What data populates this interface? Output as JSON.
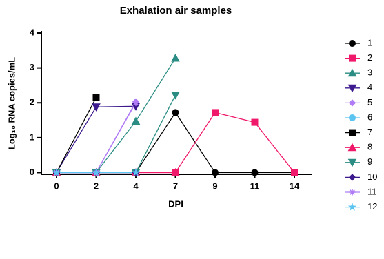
{
  "chart_data": {
    "type": "line",
    "title": "Exhalation air samples",
    "x_label": "DPI",
    "y_label": "Log₁₀ RNA copies/mL",
    "categories": [
      "0",
      "2",
      "4",
      "7",
      "9",
      "11",
      "14"
    ],
    "ylim": [
      -0.05,
      4
    ],
    "yticks": [
      0,
      1,
      2,
      3,
      4
    ],
    "legend": "right",
    "series": [
      {
        "name": "1",
        "color": "#000000",
        "marker": "circle",
        "values": [
          0,
          0,
          0,
          1.72,
          0,
          0,
          0
        ]
      },
      {
        "name": "2",
        "color": "#f0186a",
        "marker": "square",
        "values": [
          0,
          0,
          0,
          0,
          1.72,
          1.44,
          0
        ]
      },
      {
        "name": "3",
        "color": "#2a8c83",
        "marker": "triangle",
        "values": [
          0,
          0,
          1.47,
          3.28,
          null,
          null,
          null
        ]
      },
      {
        "name": "4",
        "color": "#3c1a8e",
        "marker": "triangle-down",
        "values": [
          0,
          1.88,
          1.9,
          null,
          null,
          null,
          null
        ]
      },
      {
        "name": "5",
        "color": "#b07cf5",
        "marker": "diamond",
        "values": [
          0,
          0,
          2.03,
          null,
          null,
          null,
          null
        ]
      },
      {
        "name": "6",
        "color": "#5bc4f0",
        "marker": "circle",
        "values": [
          0,
          0,
          null,
          null,
          null,
          null,
          null
        ]
      },
      {
        "name": "7",
        "color": "#000000",
        "marker": "square",
        "values": [
          0,
          2.15,
          null,
          null,
          null,
          null,
          null
        ]
      },
      {
        "name": "8",
        "color": "#f0186a",
        "marker": "triangle",
        "values": [
          0,
          0,
          0,
          0,
          null,
          null,
          null
        ]
      },
      {
        "name": "9",
        "color": "#2a8c83",
        "marker": "triangle-down",
        "values": [
          0,
          0,
          0,
          2.22,
          null,
          null,
          null
        ]
      },
      {
        "name": "10",
        "color": "#3c1a8e",
        "marker": "diamond",
        "values": [
          0,
          0,
          0,
          null,
          null,
          null,
          null
        ]
      },
      {
        "name": "11",
        "color": "#b07cf5",
        "marker": "asterisk",
        "values": [
          0,
          0,
          2.0,
          null,
          null,
          null,
          null
        ]
      },
      {
        "name": "12",
        "color": "#5bc4f0",
        "marker": "star",
        "values": [
          0,
          0,
          0,
          null,
          null,
          null,
          null
        ]
      }
    ]
  }
}
